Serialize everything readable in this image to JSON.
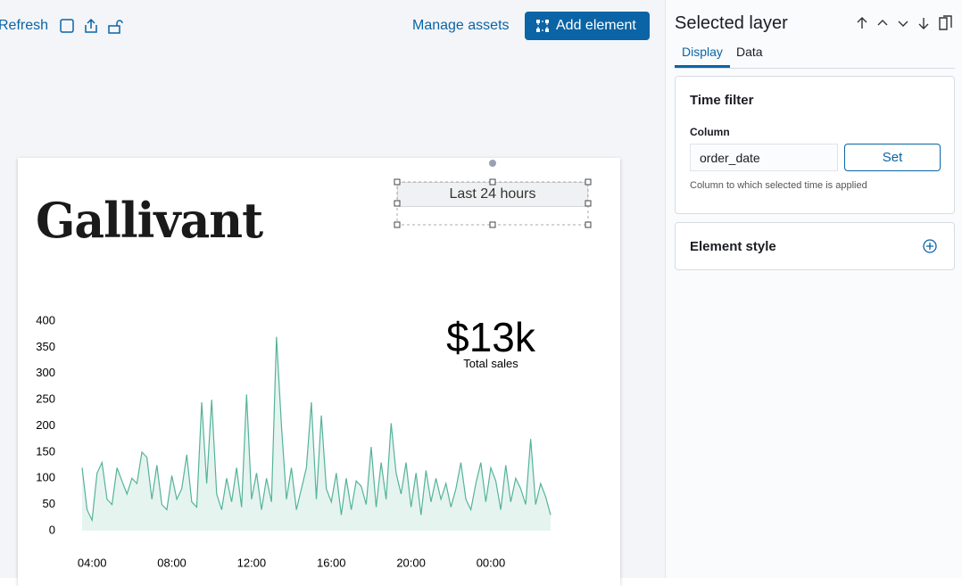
{
  "toolbar": {
    "refresh": "Refresh",
    "manage_assets": "Manage assets",
    "add_element": "Add element"
  },
  "canvas": {
    "logo": "Gallivant",
    "time_filter": "Last 24 hours",
    "metric": {
      "value": "$13k",
      "label": "Total sales"
    }
  },
  "chart_data": {
    "type": "area",
    "color": "#54b399",
    "x": [
      3.5,
      3.75,
      4,
      4.25,
      4.5,
      4.75,
      5,
      5.25,
      5.5,
      5.75,
      6,
      6.25,
      6.5,
      6.75,
      7,
      7.25,
      7.5,
      7.75,
      8,
      8.25,
      8.5,
      8.75,
      9,
      9.25,
      9.5,
      9.75,
      10,
      10.25,
      10.5,
      10.75,
      11,
      11.25,
      11.5,
      11.75,
      12,
      12.25,
      12.5,
      12.75,
      13,
      13.25,
      13.5,
      13.75,
      14,
      14.25,
      14.5,
      14.75,
      15,
      15.25,
      15.5,
      15.75,
      16,
      16.25,
      16.5,
      16.75,
      17,
      17.25,
      17.5,
      17.75,
      18,
      18.25,
      18.5,
      18.75,
      19,
      19.25,
      19.5,
      19.75,
      20,
      20.25,
      20.5,
      20.75,
      21,
      21.25,
      21.5,
      21.75,
      22,
      22.25,
      22.5,
      22.75,
      23,
      23.25,
      23.5,
      23.75,
      24,
      24.25,
      24.5,
      24.75,
      25,
      25.25,
      25.5,
      25.75,
      26,
      26.25,
      26.5,
      26.75,
      27
    ],
    "values": [
      120,
      40,
      20,
      110,
      130,
      60,
      50,
      120,
      95,
      70,
      100,
      90,
      150,
      140,
      60,
      125,
      50,
      40,
      105,
      60,
      80,
      145,
      55,
      45,
      245,
      90,
      250,
      70,
      40,
      100,
      55,
      120,
      45,
      260,
      60,
      110,
      40,
      100,
      55,
      370,
      200,
      60,
      120,
      40,
      80,
      120,
      245,
      60,
      220,
      80,
      55,
      110,
      30,
      100,
      40,
      95,
      85,
      50,
      160,
      45,
      130,
      60,
      205,
      110,
      70,
      130,
      45,
      110,
      30,
      115,
      55,
      100,
      60,
      90,
      45,
      80,
      130,
      60,
      40,
      90,
      130,
      55,
      120,
      95,
      40,
      125,
      55,
      100,
      80,
      50,
      175,
      50,
      90,
      65,
      30
    ],
    "xlim": [
      3.5,
      27
    ],
    "xticks": [
      {
        "value": 4,
        "label": "04:00"
      },
      {
        "value": 8,
        "label": "08:00"
      },
      {
        "value": 12,
        "label": "12:00"
      },
      {
        "value": 16,
        "label": "16:00"
      },
      {
        "value": 20,
        "label": "20:00"
      },
      {
        "value": 24,
        "label": "00:00"
      }
    ],
    "ylim": [
      0,
      400
    ],
    "yticks": [
      0,
      50,
      100,
      150,
      200,
      250,
      300,
      350,
      400
    ],
    "grid": false
  },
  "sidebar": {
    "title": "Selected layer",
    "tabs": [
      "Display",
      "Data"
    ],
    "time_filter": {
      "title": "Time filter",
      "column_label": "Column",
      "column_value": "order_date",
      "button": "Set",
      "help": "Column to which selected time is applied"
    },
    "element_style": {
      "title": "Element style"
    }
  }
}
